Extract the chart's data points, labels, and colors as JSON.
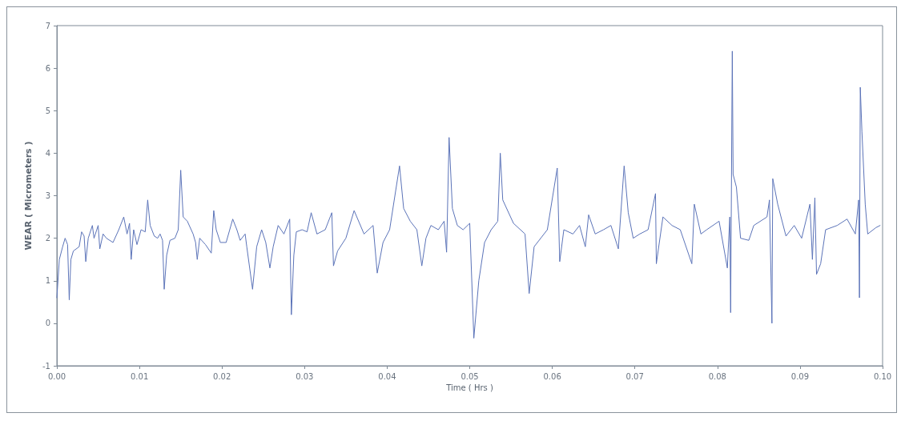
{
  "chart_data": {
    "type": "line",
    "xlabel": "Time ( Hrs )",
    "ylabel": "WEAR ( Micrometers )",
    "xlim": [
      0,
      0.1
    ],
    "ylim": [
      -1,
      7
    ],
    "xticks": [
      {
        "value": 0,
        "label": "0.00"
      },
      {
        "value": 0.01,
        "label": "0.01"
      },
      {
        "value": 0.02,
        "label": "0.02"
      },
      {
        "value": 0.03,
        "label": "0.03"
      },
      {
        "value": 0.04,
        "label": "0.04"
      },
      {
        "value": 0.05,
        "label": "0.05"
      },
      {
        "value": 0.06,
        "label": "0.06"
      },
      {
        "value": 0.07,
        "label": "0.07"
      },
      {
        "value": 0.08,
        "label": "0.08"
      },
      {
        "value": 0.09,
        "label": "0.09"
      },
      {
        "value": 0.1,
        "label": "0.10"
      }
    ],
    "yticks": [
      -1,
      0,
      1,
      2,
      3,
      4,
      5,
      6,
      7
    ],
    "grid": false,
    "marker": "none",
    "line_style": "solid",
    "series": [
      {
        "color": "#5b73b8",
        "x": [
          0,
          0.0003,
          0.0007,
          0.001,
          0.0013,
          0.0015,
          0.0017,
          0.002,
          0.0027,
          0.003,
          0.0033,
          0.0035,
          0.0038,
          0.0043,
          0.0045,
          0.005,
          0.0052,
          0.0056,
          0.006,
          0.0068,
          0.0075,
          0.0081,
          0.0085,
          0.0088,
          0.009,
          0.0093,
          0.0097,
          0.0102,
          0.0107,
          0.011,
          0.0113,
          0.0118,
          0.0122,
          0.0125,
          0.0128,
          0.013,
          0.0133,
          0.0137,
          0.0143,
          0.0147,
          0.015,
          0.0153,
          0.0158,
          0.0165,
          0.0168,
          0.017,
          0.0173,
          0.018,
          0.0187,
          0.019,
          0.0193,
          0.0198,
          0.0205,
          0.0213,
          0.0218,
          0.0222,
          0.0228,
          0.023,
          0.0237,
          0.0242,
          0.0248,
          0.0253,
          0.0258,
          0.0262,
          0.0268,
          0.0275,
          0.0282,
          0.0284,
          0.0287,
          0.029,
          0.0297,
          0.0303,
          0.0308,
          0.0315,
          0.0325,
          0.0333,
          0.0335,
          0.034,
          0.035,
          0.036,
          0.0372,
          0.0383,
          0.0388,
          0.0395,
          0.0403,
          0.0415,
          0.042,
          0.0428,
          0.0436,
          0.0442,
          0.0447,
          0.0453,
          0.0462,
          0.0469,
          0.0472,
          0.0475,
          0.0479,
          0.0485,
          0.0492,
          0.05,
          0.0505,
          0.0511,
          0.0518,
          0.0526,
          0.0534,
          0.0537,
          0.054,
          0.0553,
          0.0567,
          0.0572,
          0.0578,
          0.0594,
          0.0606,
          0.0609,
          0.0614,
          0.0625,
          0.0633,
          0.064,
          0.0644,
          0.0652,
          0.0662,
          0.0671,
          0.068,
          0.0687,
          0.0692,
          0.0698,
          0.0706,
          0.0716,
          0.0725,
          0.0726,
          0.0734,
          0.0745,
          0.0755,
          0.0769,
          0.0772,
          0.078,
          0.0787,
          0.0802,
          0.0812,
          0.0815,
          0.0816,
          0.0818,
          0.0819,
          0.0823,
          0.0828,
          0.0838,
          0.0844,
          0.086,
          0.0863,
          0.0866,
          0.0867,
          0.0873,
          0.0883,
          0.0893,
          0.0902,
          0.0912,
          0.0915,
          0.0918,
          0.092,
          0.0925,
          0.0931,
          0.0945,
          0.0957,
          0.0967,
          0.0971,
          0.0972,
          0.0973,
          0.0975,
          0.0979,
          0.0982,
          0.0992,
          0.0997
        ],
        "values": [
          0.6,
          1.5,
          1.8,
          2.0,
          1.85,
          0.55,
          1.5,
          1.7,
          1.8,
          2.15,
          2.05,
          1.45,
          2.0,
          2.3,
          2.0,
          2.3,
          1.75,
          2.1,
          2.0,
          1.9,
          2.2,
          2.5,
          2.1,
          2.35,
          1.5,
          2.2,
          1.85,
          2.2,
          2.15,
          2.9,
          2.3,
          2.05,
          2.0,
          2.1,
          1.95,
          0.8,
          1.6,
          1.95,
          2.0,
          2.2,
          3.6,
          2.5,
          2.4,
          2.1,
          1.9,
          1.5,
          2.0,
          1.85,
          1.65,
          2.65,
          2.2,
          1.9,
          1.9,
          2.45,
          2.2,
          1.95,
          2.1,
          1.8,
          0.8,
          1.8,
          2.2,
          1.9,
          1.3,
          1.8,
          2.3,
          2.1,
          2.45,
          0.2,
          1.6,
          2.15,
          2.2,
          2.15,
          2.6,
          2.1,
          2.2,
          2.6,
          1.35,
          1.7,
          2.0,
          2.65,
          2.1,
          2.3,
          1.18,
          1.9,
          2.2,
          3.7,
          2.7,
          2.4,
          2.2,
          1.35,
          2.0,
          2.3,
          2.2,
          2.4,
          1.67,
          4.37,
          2.7,
          2.3,
          2.2,
          2.35,
          -0.35,
          1.0,
          1.9,
          2.2,
          2.4,
          4.0,
          2.9,
          2.35,
          2.1,
          0.7,
          1.8,
          2.2,
          3.65,
          1.45,
          2.2,
          2.1,
          2.3,
          1.8,
          2.55,
          2.1,
          2.2,
          2.3,
          1.75,
          3.7,
          2.6,
          2.0,
          2.1,
          2.2,
          3.05,
          1.4,
          2.5,
          2.3,
          2.2,
          1.4,
          2.8,
          2.1,
          2.2,
          2.4,
          1.3,
          2.5,
          0.25,
          6.4,
          3.5,
          3.2,
          2.0,
          1.95,
          2.3,
          2.5,
          2.9,
          0.0,
          3.4,
          2.8,
          2.05,
          2.3,
          2.0,
          2.8,
          1.5,
          2.95,
          1.15,
          1.4,
          2.2,
          2.3,
          2.45,
          2.1,
          2.9,
          0.6,
          5.55,
          4.5,
          2.8,
          2.1,
          2.25,
          2.3
        ]
      }
    ]
  }
}
